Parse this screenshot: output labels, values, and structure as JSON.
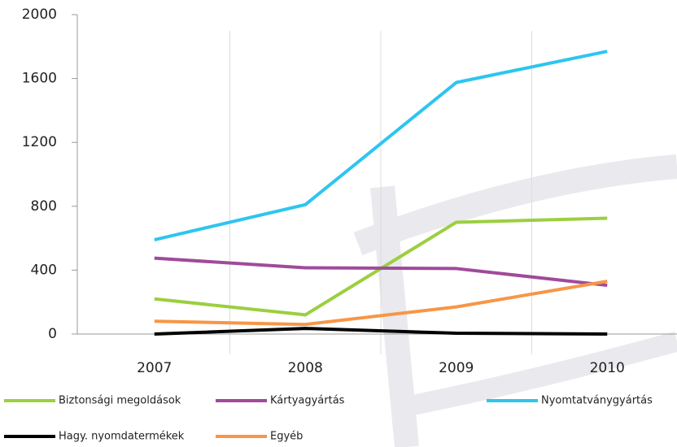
{
  "chart_data": {
    "type": "line",
    "categories": [
      "2007",
      "2008",
      "2009",
      "2010"
    ],
    "series": [
      {
        "name": "Biztonsági megoldások",
        "color": "#9bcf3f",
        "values": [
          220,
          120,
          700,
          725
        ]
      },
      {
        "name": "Kártyagyártás",
        "color": "#a04a9b",
        "values": [
          475,
          415,
          410,
          305
        ]
      },
      {
        "name": "Nyomtatványgyártás",
        "color": "#2ec5f0",
        "values": [
          590,
          810,
          1575,
          1770
        ]
      },
      {
        "name": "Hagy. nyomdatermékek",
        "color": "#000000",
        "values": [
          0,
          35,
          5,
          0
        ]
      },
      {
        "name": "Egyéb",
        "color": "#f79646",
        "values": [
          80,
          60,
          170,
          330
        ]
      }
    ],
    "ylim": [
      0,
      2000
    ],
    "yticks": [
      0,
      400,
      800,
      1200,
      1600,
      2000
    ]
  }
}
